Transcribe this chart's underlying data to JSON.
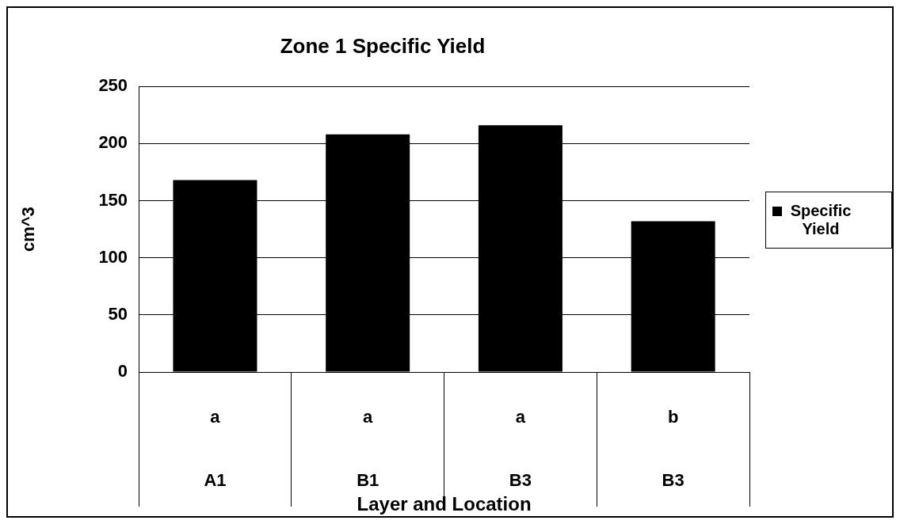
{
  "chart_data": {
    "type": "bar",
    "title": "Zone 1 Specific Yield",
    "xlabel": "Layer and Location",
    "ylabel": "cm^3",
    "categories": [
      "A1",
      "B1",
      "B3",
      "B3"
    ],
    "annotations": [
      "a",
      "a",
      "a",
      "b"
    ],
    "series": [
      {
        "name": "Specific Yield",
        "color": "#000000",
        "values": [
          168,
          208,
          216,
          132
        ]
      }
    ],
    "ylim": [
      0,
      250
    ],
    "yticks": [
      0,
      50,
      100,
      150,
      200,
      250
    ],
    "grid": "y",
    "legend": "right"
  }
}
